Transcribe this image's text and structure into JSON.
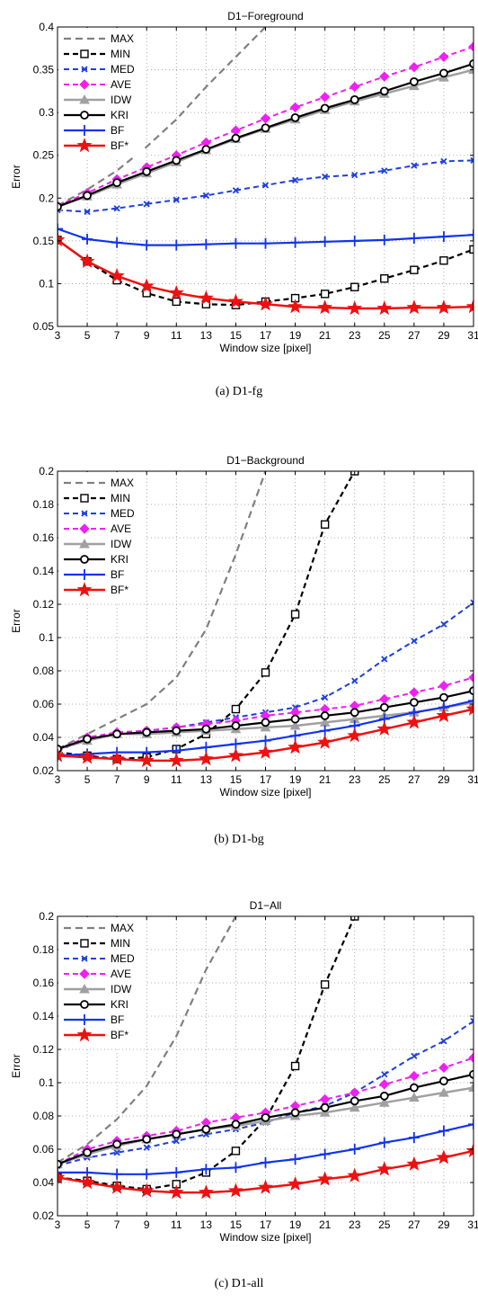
{
  "colors": {
    "MAX": "#808080",
    "MIN": "#000000",
    "MED": "#1f3fdf",
    "AVE": "#ee22ee",
    "IDW": "#a0a0a0",
    "KRI": "#000000",
    "BF": "#1133ee",
    "BF*": "#ee1111"
  },
  "chart_data": [
    {
      "type": "line",
      "title": "D1−Foreground",
      "xlabel": "Window size [pixel]",
      "ylabel": "Error",
      "ylim": [
        0.05,
        0.4
      ],
      "yticks": [
        "0.05",
        "0.1",
        "0.15",
        "0.2",
        "0.25",
        "0.3",
        "0.35",
        "0.4"
      ],
      "ytick_values": [
        0.05,
        0.1,
        0.15,
        0.2,
        0.25,
        0.3,
        0.35,
        0.4
      ],
      "x": [
        3,
        5,
        7,
        9,
        11,
        13,
        15,
        17,
        19,
        21,
        23,
        25,
        27,
        29,
        31
      ],
      "grid": true,
      "legend": "top-left",
      "series": [
        {
          "name": "MAX",
          "values": [
            0.191,
            0.21,
            0.232,
            0.26,
            0.292,
            0.33,
            0.365,
            0.4,
            null,
            null,
            null,
            null,
            null,
            null,
            null
          ]
        },
        {
          "name": "MIN",
          "values": [
            0.151,
            0.126,
            0.104,
            0.089,
            0.079,
            0.076,
            0.075,
            0.079,
            0.083,
            0.088,
            0.096,
            0.106,
            0.116,
            0.127,
            0.14
          ]
        },
        {
          "name": "MED",
          "values": [
            0.186,
            0.184,
            0.188,
            0.193,
            0.198,
            0.203,
            0.209,
            0.215,
            0.221,
            0.225,
            0.227,
            0.232,
            0.238,
            0.243,
            0.244
          ]
        },
        {
          "name": "AVE",
          "values": [
            0.191,
            0.206,
            0.222,
            0.236,
            0.25,
            0.265,
            0.279,
            0.293,
            0.306,
            0.318,
            0.33,
            0.342,
            0.353,
            0.365,
            0.377
          ]
        },
        {
          "name": "IDW",
          "values": [
            0.19,
            0.202,
            0.216,
            0.229,
            0.242,
            0.256,
            0.269,
            0.281,
            0.292,
            0.303,
            0.313,
            0.322,
            0.331,
            0.341,
            0.35
          ]
        },
        {
          "name": "KRI",
          "values": [
            0.19,
            0.203,
            0.218,
            0.231,
            0.244,
            0.257,
            0.27,
            0.282,
            0.294,
            0.305,
            0.315,
            0.325,
            0.336,
            0.346,
            0.357
          ]
        },
        {
          "name": "BF",
          "values": [
            0.164,
            0.152,
            0.148,
            0.145,
            0.145,
            0.146,
            0.147,
            0.147,
            0.148,
            0.149,
            0.15,
            0.151,
            0.153,
            0.155,
            0.157
          ]
        },
        {
          "name": "BF*",
          "values": [
            0.151,
            0.126,
            0.109,
            0.097,
            0.089,
            0.083,
            0.079,
            0.076,
            0.073,
            0.072,
            0.071,
            0.071,
            0.072,
            0.072,
            0.073
          ]
        }
      ],
      "caption": "(a)  D1-fg"
    },
    {
      "type": "line",
      "title": "D1−Background",
      "xlabel": "Window size [pixel]",
      "ylabel": "Error",
      "ylim": [
        0.02,
        0.2
      ],
      "yticks": [
        "0.02",
        "0.04",
        "0.06",
        "0.08",
        "0.1",
        "0.12",
        "0.14",
        "0.16",
        "0.18",
        "0.2"
      ],
      "ytick_values": [
        0.02,
        0.04,
        0.06,
        0.08,
        0.1,
        0.12,
        0.14,
        0.16,
        0.18,
        0.2
      ],
      "x": [
        3,
        5,
        7,
        9,
        11,
        13,
        15,
        17,
        19,
        21,
        23,
        25,
        27,
        29,
        31
      ],
      "grid": true,
      "legend": "top-left",
      "series": [
        {
          "name": "MAX",
          "values": [
            0.033,
            0.042,
            0.051,
            0.06,
            0.076,
            0.105,
            0.15,
            0.2,
            null,
            null,
            null,
            null,
            null,
            null,
            null
          ]
        },
        {
          "name": "MIN",
          "values": [
            0.031,
            0.029,
            0.027,
            0.028,
            0.033,
            0.042,
            0.057,
            0.079,
            0.114,
            0.168,
            0.2,
            null,
            null,
            null,
            null
          ]
        },
        {
          "name": "MED",
          "values": [
            0.032,
            0.039,
            0.042,
            0.044,
            0.046,
            0.049,
            0.052,
            0.055,
            0.058,
            0.064,
            0.074,
            0.087,
            0.098,
            0.108,
            0.121
          ]
        },
        {
          "name": "AVE",
          "values": [
            0.033,
            0.04,
            0.043,
            0.044,
            0.046,
            0.048,
            0.05,
            0.053,
            0.055,
            0.057,
            0.059,
            0.063,
            0.067,
            0.071,
            0.076
          ]
        },
        {
          "name": "IDW",
          "values": [
            0.033,
            0.038,
            0.042,
            0.042,
            0.043,
            0.044,
            0.045,
            0.046,
            0.047,
            0.049,
            0.051,
            0.053,
            0.055,
            0.058,
            0.061
          ]
        },
        {
          "name": "KRI",
          "values": [
            0.033,
            0.039,
            0.042,
            0.043,
            0.044,
            0.045,
            0.047,
            0.049,
            0.051,
            0.053,
            0.055,
            0.058,
            0.061,
            0.064,
            0.068
          ]
        },
        {
          "name": "BF",
          "values": [
            0.029,
            0.03,
            0.031,
            0.031,
            0.032,
            0.034,
            0.036,
            0.038,
            0.041,
            0.044,
            0.047,
            0.051,
            0.055,
            0.058,
            0.062
          ]
        },
        {
          "name": "BF*",
          "values": [
            0.029,
            0.028,
            0.027,
            0.026,
            0.026,
            0.027,
            0.029,
            0.031,
            0.034,
            0.037,
            0.041,
            0.045,
            0.049,
            0.053,
            0.057
          ]
        }
      ],
      "caption": "(b)  D1-bg"
    },
    {
      "type": "line",
      "title": "D1−All",
      "xlabel": "Window size [pixel]",
      "ylabel": "Error",
      "ylim": [
        0.02,
        0.2
      ],
      "yticks": [
        "0.02",
        "0.04",
        "0.06",
        "0.08",
        "0.1",
        "0.12",
        "0.14",
        "0.16",
        "0.18",
        "0.2"
      ],
      "ytick_values": [
        0.02,
        0.04,
        0.06,
        0.08,
        0.1,
        0.12,
        0.14,
        0.16,
        0.18,
        0.2
      ],
      "x": [
        3,
        5,
        7,
        9,
        11,
        13,
        15,
        17,
        19,
        21,
        23,
        25,
        27,
        29,
        31
      ],
      "grid": true,
      "legend": "top-left",
      "series": [
        {
          "name": "MAX",
          "values": [
            0.052,
            0.063,
            0.078,
            0.098,
            0.128,
            0.168,
            0.2,
            null,
            null,
            null,
            null,
            null,
            null,
            null,
            null
          ]
        },
        {
          "name": "MIN",
          "values": [
            0.043,
            0.041,
            0.038,
            0.036,
            0.039,
            0.046,
            0.059,
            0.078,
            0.11,
            0.159,
            0.2,
            null,
            null,
            null,
            null
          ]
        },
        {
          "name": "MED",
          "values": [
            0.05,
            0.055,
            0.058,
            0.061,
            0.065,
            0.069,
            0.072,
            0.076,
            0.082,
            0.086,
            0.094,
            0.105,
            0.116,
            0.125,
            0.137
          ]
        },
        {
          "name": "AVE",
          "values": [
            0.051,
            0.06,
            0.065,
            0.068,
            0.071,
            0.076,
            0.079,
            0.082,
            0.086,
            0.09,
            0.094,
            0.099,
            0.104,
            0.109,
            0.115
          ]
        },
        {
          "name": "IDW",
          "values": [
            0.051,
            0.057,
            0.062,
            0.066,
            0.069,
            0.072,
            0.074,
            0.077,
            0.08,
            0.082,
            0.085,
            0.088,
            0.091,
            0.094,
            0.097
          ]
        },
        {
          "name": "KRI",
          "values": [
            0.051,
            0.058,
            0.063,
            0.066,
            0.069,
            0.072,
            0.075,
            0.079,
            0.082,
            0.085,
            0.089,
            0.092,
            0.097,
            0.101,
            0.105
          ]
        },
        {
          "name": "BF",
          "values": [
            0.046,
            0.046,
            0.045,
            0.045,
            0.046,
            0.048,
            0.049,
            0.052,
            0.054,
            0.057,
            0.06,
            0.064,
            0.067,
            0.071,
            0.075
          ]
        },
        {
          "name": "BF*",
          "values": [
            0.043,
            0.04,
            0.037,
            0.035,
            0.034,
            0.034,
            0.035,
            0.037,
            0.039,
            0.042,
            0.044,
            0.048,
            0.051,
            0.055,
            0.059
          ]
        }
      ],
      "caption": "(c)  D1-all"
    }
  ]
}
